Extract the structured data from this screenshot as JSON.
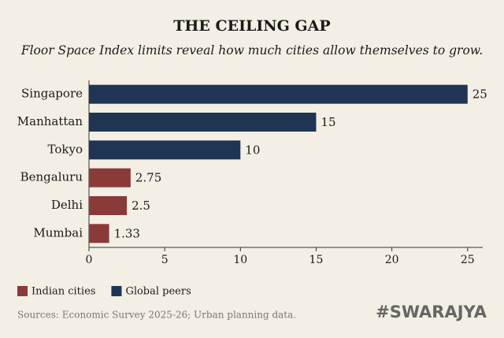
{
  "chart_data": {
    "type": "bar",
    "orientation": "horizontal",
    "title": "THE CEILING GAP",
    "subtitle": "Floor Space Index limits reveal how much cities allow themselves to grow.",
    "categories": [
      "Singapore",
      "Manhattan",
      "Tokyo",
      "Bengaluru",
      "Delhi",
      "Mumbai"
    ],
    "series": [
      {
        "name": "Indian cities",
        "color": "#8b3a3a",
        "values": [
          null,
          null,
          null,
          2.75,
          2.5,
          1.33
        ]
      },
      {
        "name": "Global peers",
        "color": "#1f3553",
        "values": [
          25,
          15,
          10,
          null,
          null,
          null
        ]
      }
    ],
    "xlim": [
      0,
      26
    ],
    "xticks": [
      0,
      5,
      10,
      15,
      20,
      25
    ],
    "legend": "bottom-left",
    "source": "Sources: Economic Survey 2025-26; Urban planning data.",
    "brand": "#SWARAJYA"
  }
}
